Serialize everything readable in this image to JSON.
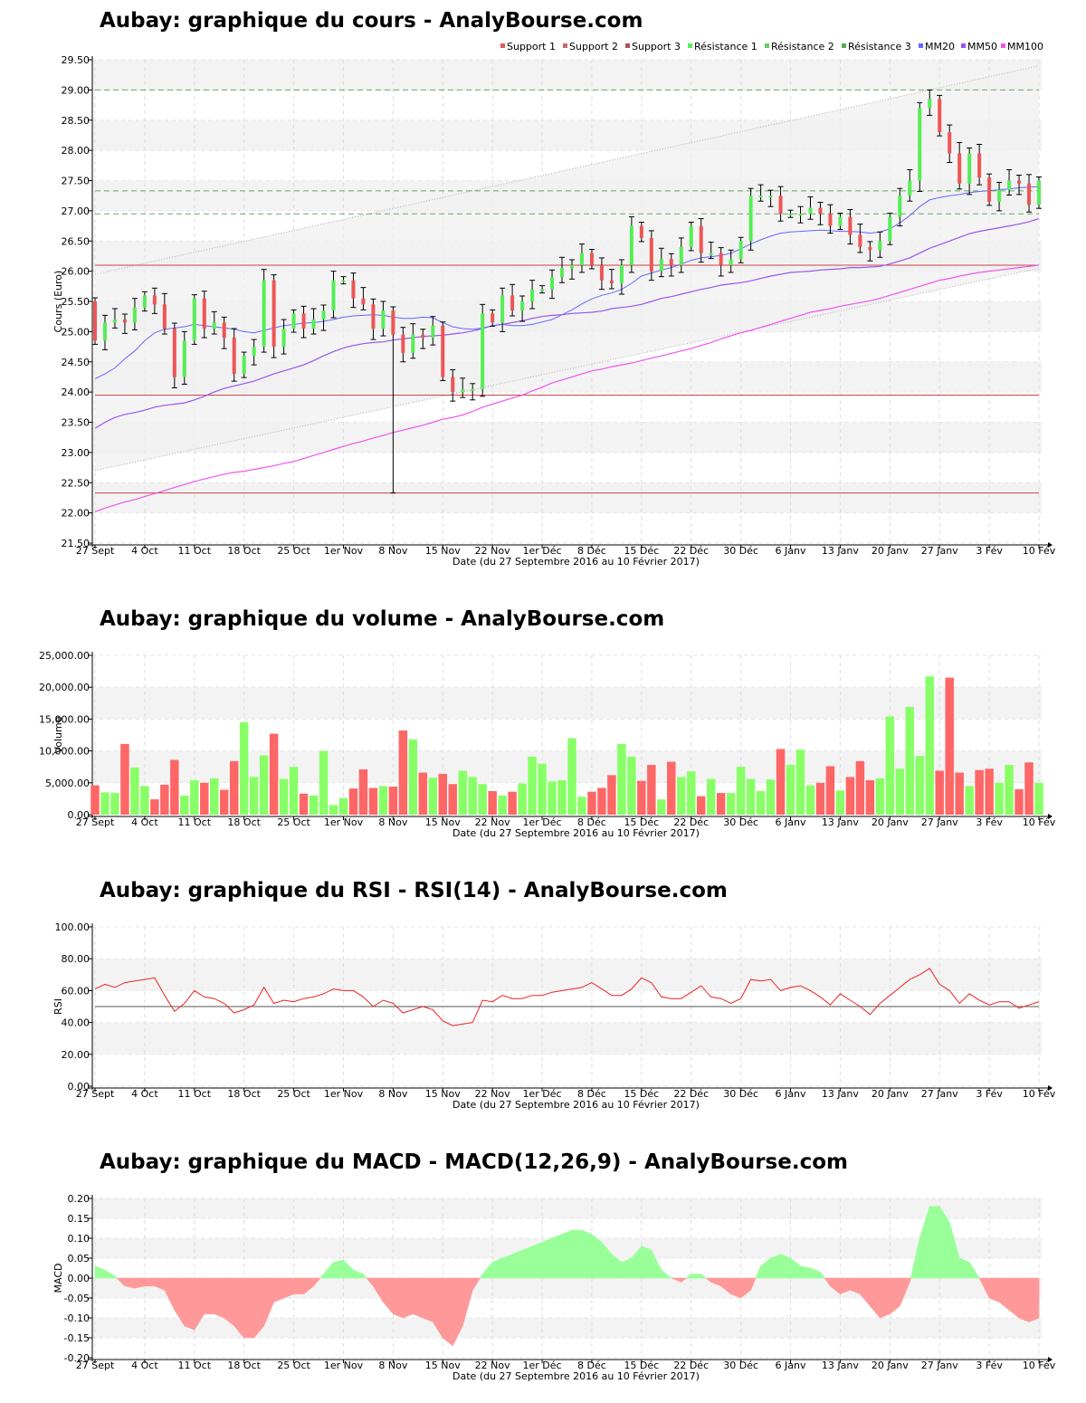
{
  "titles": {
    "price": "Aubay: graphique du cours - AnalyBourse.com",
    "volume": "Aubay: graphique du volume - AnalyBourse.com",
    "rsi": "Aubay: graphique du RSI - RSI(14) - AnalyBourse.com",
    "macd": "Aubay: graphique du MACD - MACD(12,26,9) - AnalyBourse.com"
  },
  "xaxis": {
    "label": "Date (du 27 Septembre 2016 au 10 Février 2017)",
    "ticks": [
      {
        "label": "27 Sept",
        "i": 0
      },
      {
        "label": "4 Oct",
        "i": 5
      },
      {
        "label": "11 Oct",
        "i": 10
      },
      {
        "label": "18 Oct",
        "i": 15
      },
      {
        "label": "25 Oct",
        "i": 20
      },
      {
        "label": "1er Nov",
        "i": 25
      },
      {
        "label": "8 Nov",
        "i": 30
      },
      {
        "label": "15 Nov",
        "i": 35
      },
      {
        "label": "22 Nov",
        "i": 40
      },
      {
        "label": "1er Déc",
        "i": 45
      },
      {
        "label": "8 Déc",
        "i": 50
      },
      {
        "label": "15 Déc",
        "i": 55
      },
      {
        "label": "22 Déc",
        "i": 60
      },
      {
        "label": "30 Déc",
        "i": 65
      },
      {
        "label": "6 Janv",
        "i": 70
      },
      {
        "label": "13 Janv",
        "i": 75
      },
      {
        "label": "20 Janv",
        "i": 80
      },
      {
        "label": "27 Janv",
        "i": 85
      },
      {
        "label": "3 Fév",
        "i": 90
      },
      {
        "label": "10 Fév",
        "i": 95
      }
    ]
  },
  "colors": {
    "up": "#55ee55",
    "down": "#ee5555",
    "volUp": "#88ff66",
    "volDown": "#ff6666",
    "mm20": "#6666ff",
    "mm50": "#9955ee",
    "mm100": "#ee55ee",
    "support": "#cc4444",
    "resistance": "#66aa66",
    "rsi": "#ee2222",
    "macdUp": "#99ff99",
    "macdDown": "#ff9999"
  },
  "chart_data": [
    {
      "type": "candlestick",
      "title": "Aubay: graphique du cours - AnalyBourse.com",
      "xlabel": "Date (du 27 Septembre 2016 au 10 Février 2017)",
      "ylabel": "Cours (Euro)",
      "ylim": [
        21.5,
        29.5
      ],
      "yticks": [
        "21.50",
        "22.00",
        "22.50",
        "23.00",
        "23.50",
        "24.00",
        "24.50",
        "25.00",
        "25.50",
        "26.00",
        "26.50",
        "27.00",
        "27.50",
        "28.00",
        "28.50",
        "29.00",
        "29.50"
      ],
      "legend": [
        "Support 1",
        "Support 2",
        "Support 3",
        "Résistance 1",
        "Résistance 2",
        "Résistance 3",
        "MM20",
        "MM50",
        "MM100"
      ],
      "legend_position": "top-right",
      "support_levels": [
        26.1,
        23.95,
        22.33
      ],
      "resistance_levels": [
        29.0,
        27.33,
        26.95
      ],
      "close": [
        24.85,
        25.15,
        25.2,
        25.15,
        25.4,
        25.6,
        25.45,
        25.05,
        24.25,
        24.85,
        25.55,
        25.05,
        25.15,
        24.9,
        24.3,
        24.6,
        24.75,
        25.85,
        24.75,
        25.05,
        25.3,
        25.05,
        25.2,
        25.35,
        25.85,
        25.85,
        25.55,
        25.45,
        25.05,
        25.35,
        24.95,
        24.65,
        24.95,
        24.9,
        25.1,
        24.25,
        24.0,
        24.05,
        24.05,
        25.3,
        25.15,
        25.6,
        25.35,
        25.5,
        25.7,
        25.7,
        25.9,
        26.05,
        26.1,
        26.3,
        26.1,
        25.85,
        25.8,
        26.1,
        26.75,
        26.55,
        26.0,
        26.2,
        26.1,
        26.4,
        26.75,
        26.3,
        26.3,
        26.1,
        26.2,
        26.5,
        27.25,
        27.25,
        27.25,
        26.95,
        26.95,
        26.95,
        27.05,
        26.95,
        26.75,
        26.9,
        26.6,
        26.4,
        26.35,
        26.5,
        26.9,
        27.25,
        27.5,
        28.7,
        28.85,
        28.3,
        27.95,
        27.45,
        27.95,
        27.55,
        27.15,
        27.35,
        27.5,
        27.45,
        27.1,
        27.5
      ],
      "volume": [
        4600,
        3500,
        3400,
        11100,
        7400,
        4500,
        2400,
        4700,
        8600,
        3000,
        5400,
        5000,
        5700,
        3900,
        8400,
        14500,
        5900,
        9300,
        12700,
        5600,
        7500,
        3300,
        3000,
        10000,
        1500,
        2600,
        4100,
        7100,
        4200,
        4500,
        4400,
        13200,
        11800,
        6600,
        5800,
        6400,
        4800,
        6900,
        5900,
        4800,
        3700,
        3000,
        3600,
        4900,
        9100,
        8000,
        5200,
        5400,
        12000,
        2800,
        3600,
        4200,
        6200,
        11100,
        9100,
        5300,
        7800,
        2400,
        8300,
        5900,
        6800,
        2900,
        5600,
        3400,
        3400,
        7500,
        5600,
        3700,
        5500,
        10300,
        7800,
        10200,
        4600,
        5000,
        7600,
        3800,
        5900,
        8400,
        5400,
        5700,
        15400,
        7200,
        16900,
        9200,
        21700,
        6900,
        21500,
        6600,
        4500,
        7000,
        7200,
        5000,
        7800,
        4000,
        8200,
        5000
      ],
      "rsi": [
        61,
        64,
        62,
        65,
        66,
        67,
        68,
        57,
        47,
        52,
        60,
        56,
        55,
        52,
        46,
        48,
        51,
        62,
        52,
        54,
        53,
        55,
        56,
        58,
        61,
        60,
        60,
        56,
        50,
        54,
        52,
        46,
        48,
        50,
        48,
        41,
        38,
        39,
        40,
        54,
        53,
        57,
        55,
        55,
        57,
        57,
        59,
        60,
        61,
        62,
        65,
        61,
        57,
        57,
        61,
        68,
        65,
        56,
        55,
        55,
        59,
        63,
        56,
        55,
        52,
        55,
        67,
        66,
        67,
        60,
        62,
        63,
        60,
        56,
        51,
        58,
        54,
        50,
        45,
        52,
        57,
        62,
        67,
        70,
        74,
        64,
        60,
        52,
        58,
        54,
        51,
        53,
        53,
        49,
        51,
        53
      ],
      "macd": [
        0.03,
        0.02,
        0.005,
        -0.02,
        -0.025,
        -0.02,
        -0.02,
        -0.03,
        -0.08,
        -0.12,
        -0.13,
        -0.09,
        -0.09,
        -0.1,
        -0.12,
        -0.15,
        -0.15,
        -0.12,
        -0.06,
        -0.05,
        -0.04,
        -0.04,
        -0.02,
        0.01,
        0.04,
        0.045,
        0.02,
        0.01,
        -0.02,
        -0.06,
        -0.09,
        -0.1,
        -0.09,
        -0.1,
        -0.11,
        -0.15,
        -0.17,
        -0.12,
        -0.03,
        0.01,
        0.04,
        0.05,
        0.06,
        0.07,
        0.08,
        0.09,
        0.1,
        0.11,
        0.12,
        0.12,
        0.11,
        0.09,
        0.06,
        0.04,
        0.05,
        0.08,
        0.07,
        0.02,
        0.0,
        -0.01,
        0.01,
        0.01,
        -0.01,
        -0.02,
        -0.04,
        -0.05,
        -0.03,
        0.03,
        0.05,
        0.06,
        0.05,
        0.03,
        0.025,
        0.015,
        -0.02,
        -0.04,
        -0.03,
        -0.04,
        -0.07,
        -0.1,
        -0.09,
        -0.07,
        -0.01,
        0.1,
        0.18,
        0.18,
        0.14,
        0.05,
        0.04,
        0.0,
        -0.05,
        -0.06,
        -0.08,
        -0.1,
        -0.11,
        -0.1
      ],
      "mm20": [
        24.22,
        24.3,
        24.4,
        24.55,
        24.68,
        24.85,
        24.98,
        25.04,
        25.06,
        25.08,
        25.12,
        25.1,
        25.08,
        25.06,
        25.04,
        25.0,
        24.98,
        25.02,
        25.06,
        25.1,
        25.12,
        25.14,
        25.15,
        25.17,
        25.2,
        25.24,
        25.26,
        25.27,
        25.28,
        25.27,
        25.24,
        25.22,
        25.22,
        25.24,
        25.23,
        25.15,
        25.08,
        25.05,
        25.04,
        25.06,
        25.1,
        25.12,
        25.1,
        25.1,
        25.12,
        25.16,
        25.2,
        25.28,
        25.36,
        25.46,
        25.54,
        25.6,
        25.64,
        25.7,
        25.8,
        25.92,
        25.97,
        26.02,
        26.06,
        26.12,
        26.18,
        26.22,
        26.24,
        26.26,
        26.3,
        26.37,
        26.45,
        26.52,
        26.58,
        26.63,
        26.65,
        26.66,
        26.67,
        26.68,
        26.67,
        26.66,
        26.66,
        26.65,
        26.63,
        26.65,
        26.7,
        26.8,
        26.92,
        27.07,
        27.18,
        27.22,
        27.25,
        27.27,
        27.3,
        27.32,
        27.33,
        27.35,
        27.36,
        27.38,
        27.39,
        27.4
      ],
      "mm50": [
        23.4,
        23.5,
        23.58,
        23.63,
        23.66,
        23.7,
        23.75,
        23.78,
        23.8,
        23.82,
        23.87,
        23.93,
        24.0,
        24.06,
        24.1,
        24.14,
        24.18,
        24.24,
        24.3,
        24.35,
        24.4,
        24.45,
        24.52,
        24.6,
        24.67,
        24.73,
        24.77,
        24.8,
        24.82,
        24.83,
        24.86,
        24.88,
        24.9,
        24.92,
        24.93,
        24.94,
        24.96,
        24.98,
        25.01,
        25.05,
        25.1,
        25.12,
        25.15,
        25.18,
        25.22,
        25.25,
        25.27,
        25.28,
        25.3,
        25.31,
        25.32,
        25.34,
        25.38,
        25.4,
        25.42,
        25.45,
        25.5,
        25.55,
        25.58,
        25.62,
        25.66,
        25.7,
        25.73,
        25.77,
        25.79,
        25.81,
        25.84,
        25.88,
        25.92,
        25.95,
        25.98,
        25.99,
        26.0,
        26.02,
        26.03,
        26.04,
        26.06,
        26.06,
        26.07,
        26.08,
        26.12,
        26.17,
        26.22,
        26.3,
        26.38,
        26.44,
        26.5,
        26.56,
        26.62,
        26.66,
        26.69,
        26.72,
        26.75,
        26.78,
        26.82,
        26.87
      ],
      "mm100": [
        22.02,
        22.08,
        22.13,
        22.18,
        22.22,
        22.27,
        22.32,
        22.37,
        22.42,
        22.47,
        22.52,
        22.56,
        22.6,
        22.64,
        22.67,
        22.69,
        22.72,
        22.75,
        22.78,
        22.82,
        22.85,
        22.9,
        22.95,
        23.0,
        23.05,
        23.1,
        23.15,
        23.19,
        23.24,
        23.28,
        23.33,
        23.37,
        23.41,
        23.45,
        23.5,
        23.55,
        23.58,
        23.62,
        23.68,
        23.75,
        23.8,
        23.85,
        23.9,
        23.95,
        24.02,
        24.08,
        24.15,
        24.2,
        24.25,
        24.3,
        24.35,
        24.38,
        24.42,
        24.45,
        24.48,
        24.52,
        24.56,
        24.6,
        24.64,
        24.68,
        24.72,
        24.77,
        24.82,
        24.88,
        24.93,
        24.98,
        25.02,
        25.07,
        25.12,
        25.17,
        25.22,
        25.27,
        25.32,
        25.35,
        25.38,
        25.42,
        25.45,
        25.48,
        25.51,
        25.55,
        25.6,
        25.65,
        25.7,
        25.75,
        25.8,
        25.85,
        25.88,
        25.92,
        25.95,
        25.98,
        26.0,
        26.02,
        26.04,
        26.06,
        26.08,
        26.1
      ]
    }
  ],
  "volume_chart": {
    "ylabel": "Volume",
    "yticks": [
      "0.00",
      "5,000.00",
      "10,000.00",
      "15,000.00",
      "20,000.00",
      "25,000.00"
    ]
  },
  "rsi_chart": {
    "ylabel": "RSI",
    "yticks": [
      "0.00",
      "20.00",
      "40.00",
      "60.00",
      "80.00",
      "100.00"
    ]
  },
  "macd_chart": {
    "ylabel": "MACD",
    "yticks": [
      "-0.20",
      "-0.15",
      "-0.10",
      "-0.05",
      "0.00",
      "0.05",
      "0.10",
      "0.15",
      "0.20"
    ]
  }
}
